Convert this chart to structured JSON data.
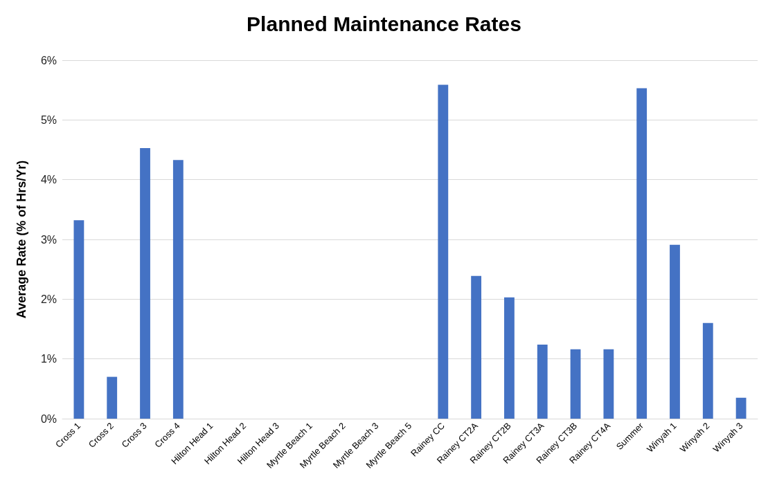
{
  "chart_data": {
    "type": "bar",
    "title": "Planned Maintenance Rates",
    "ylabel": "Average Rate (% of Hrs/Yr)",
    "categories": [
      "Cross 1",
      "Cross 2",
      "Cross 3",
      "Cross 4",
      "Hilton Head 1",
      "Hilton Head 2",
      "Hilton Head 3",
      "Myrtle Beach 1",
      "Myrtle Beach 2",
      "Myrtle Beach 3",
      "Myrtle Beach 5",
      "Rainey CC",
      "Rainey CT2A",
      "Rainey CT2B",
      "Rainey CT3A",
      "Rainey CT3B",
      "Rainey CT4A",
      "Summer",
      "Winyah 1",
      "Winyah 2",
      "Winyah 3"
    ],
    "values": [
      3.32,
      0.7,
      4.53,
      4.33,
      0,
      0,
      0,
      0,
      0,
      0,
      0,
      5.59,
      2.39,
      2.03,
      1.24,
      1.16,
      1.16,
      5.53,
      2.91,
      1.6,
      0.35
    ],
    "color": "#4472c4",
    "ylim": [
      0,
      6
    ],
    "yticks": [
      {
        "value": 0,
        "label": "0%"
      },
      {
        "value": 1,
        "label": "1%"
      },
      {
        "value": 2,
        "label": "2%"
      },
      {
        "value": 3,
        "label": "3%"
      },
      {
        "value": 4,
        "label": "4%"
      },
      {
        "value": 5,
        "label": "5%"
      },
      {
        "value": 6,
        "label": "6%"
      }
    ],
    "grid": "y"
  }
}
